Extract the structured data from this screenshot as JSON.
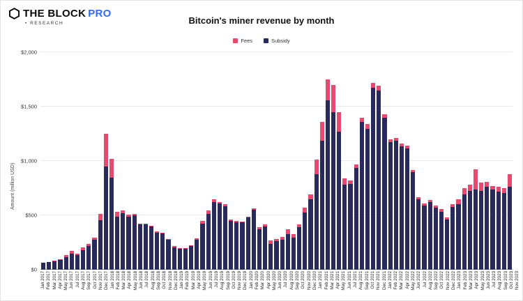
{
  "header": {
    "brand_name": "THE BLOCK",
    "brand_pro": "PRO",
    "brand_sub": "• RESEARCH"
  },
  "chart_data": {
    "type": "bar",
    "stacked": true,
    "title": "Bitcoin's miner revenue by month",
    "xlabel": "",
    "ylabel": "Amount (million USD)",
    "ylim": [
      0,
      2000
    ],
    "grid": true,
    "legend_position": "top-center",
    "colors": {
      "fees": "#e84a6f",
      "subsidy": "#272a5a"
    },
    "y_tick_values": [
      0,
      500,
      1000,
      1500,
      2000
    ],
    "y_tick_labels": [
      "$0",
      "$500",
      "$1,000",
      "$1,500",
      "$2,000"
    ],
    "categories": [
      "Jan 2017",
      "Feb 2017",
      "Mar 2017",
      "Apr 2017",
      "May 2017",
      "Jun 2017",
      "Jul 2017",
      "Aug 2017",
      "Sep 2017",
      "Oct 2017",
      "Nov 2017",
      "Dec 2017",
      "Jan 2018",
      "Feb 2018",
      "Mar 2018",
      "Apr 2018",
      "May 2018",
      "Jun 2018",
      "Jul 2018",
      "Aug 2018",
      "Sep 2018",
      "Oct 2018",
      "Nov 2018",
      "Dec 2018",
      "Jan 2019",
      "Feb 2019",
      "Mar 2019",
      "Apr 2019",
      "May 2019",
      "Jun 2019",
      "Jul 2019",
      "Aug 2019",
      "Sep 2019",
      "Oct 2019",
      "Nov 2019",
      "Dec 2019",
      "Jan 2020",
      "Feb 2020",
      "Mar 2020",
      "Apr 2020",
      "May 2020",
      "Jun 2020",
      "Jul 2020",
      "Aug 2020",
      "Sep 2020",
      "Oct 2020",
      "Nov 2020",
      "Dec 2020",
      "Jan 2021",
      "Feb 2021",
      "Mar 2021",
      "Apr 2021",
      "May 2021",
      "Jun 2021",
      "Jul 2021",
      "Aug 2021",
      "Sep 2021",
      "Oct 2021",
      "Nov 2021",
      "Dec 2021",
      "Jan 2022",
      "Feb 2022",
      "Mar 2022",
      "Apr 2022",
      "May 2022",
      "Jun 2022",
      "Jul 2022",
      "Aug 2022",
      "Sep 2022",
      "Oct 2022",
      "Nov 2022",
      "Dec 2022",
      "Jan 2023",
      "Feb 2023",
      "Mar 2023",
      "Apr 2023",
      "May 2023",
      "Jun 2023",
      "Jul 2023",
      "Aug 2023",
      "Sep 2023",
      "Oct 2023",
      "Nov 2023"
    ],
    "series": [
      {
        "name": "Fees",
        "values": [
          3,
          4,
          6,
          6,
          20,
          25,
          15,
          25,
          20,
          20,
          55,
          300,
          175,
          40,
          25,
          15,
          15,
          10,
          10,
          10,
          8,
          8,
          10,
          10,
          8,
          8,
          8,
          12,
          25,
          30,
          25,
          18,
          15,
          12,
          12,
          10,
          12,
          15,
          18,
          15,
          35,
          20,
          25,
          40,
          35,
          30,
          45,
          45,
          130,
          175,
          190,
          250,
          180,
          60,
          30,
          35,
          40,
          45,
          50,
          45,
          30,
          25,
          25,
          25,
          25,
          25,
          20,
          18,
          18,
          20,
          25,
          18,
          25,
          40,
          60,
          55,
          180,
          75,
          50,
          35,
          40,
          45,
          120
        ]
      },
      {
        "name": "Subsidy",
        "values": [
          62,
          68,
          79,
          89,
          115,
          150,
          135,
          180,
          215,
          275,
          455,
          950,
          845,
          490,
          520,
          490,
          500,
          415,
          415,
          395,
          342,
          332,
          275,
          205,
          192,
          192,
          217,
          278,
          425,
          515,
          620,
          607,
          585,
          448,
          438,
          435,
          478,
          550,
          372,
          400,
          235,
          265,
          275,
          330,
          295,
          390,
          525,
          650,
          880,
          1185,
          1560,
          1450,
          1270,
          780,
          790,
          935,
          1360,
          1295,
          1670,
          1645,
          1400,
          1175,
          1185,
          1135,
          1115,
          895,
          650,
          592,
          622,
          570,
          535,
          462,
          575,
          605,
          690,
          725,
          740,
          725,
          760,
          735,
          720,
          705,
          760
        ]
      }
    ]
  }
}
